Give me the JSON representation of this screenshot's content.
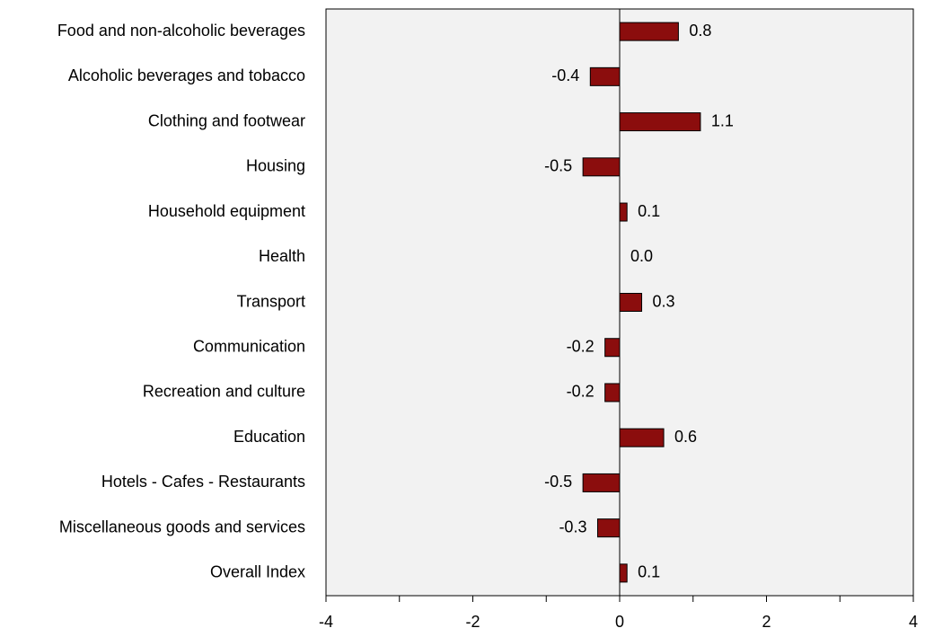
{
  "chart_data": {
    "type": "hbar",
    "categories": [
      "Food and non-alcoholic beverages",
      "Alcoholic beverages and tobacco",
      "Clothing and footwear",
      "Housing",
      "Household equipment",
      "Health",
      "Transport",
      "Communication",
      "Recreation and culture",
      "Education",
      "Hotels - Cafes - Restaurants",
      "Miscellaneous goods and services",
      "Overall Index"
    ],
    "values": [
      0.8,
      -0.4,
      1.1,
      -0.5,
      0.1,
      0,
      0.3,
      -0.2,
      -0.2,
      0.6,
      -0.5,
      -0.3,
      0.1
    ],
    "value_labels": [
      "0.8",
      "-0.4",
      "1.1",
      "-0.5",
      "0.1",
      "0.0",
      "0.3",
      "-0.2",
      "-0.2",
      "0.6",
      "-0.5",
      "-0.3",
      "0.1"
    ],
    "color": "#8b0d0d",
    "xlim": [
      -4,
      4
    ],
    "xticks": [
      -4,
      -2,
      0,
      2,
      4
    ],
    "xminorticks": [
      -3,
      -1,
      1,
      3
    ],
    "background": "#f2f2f2"
  }
}
